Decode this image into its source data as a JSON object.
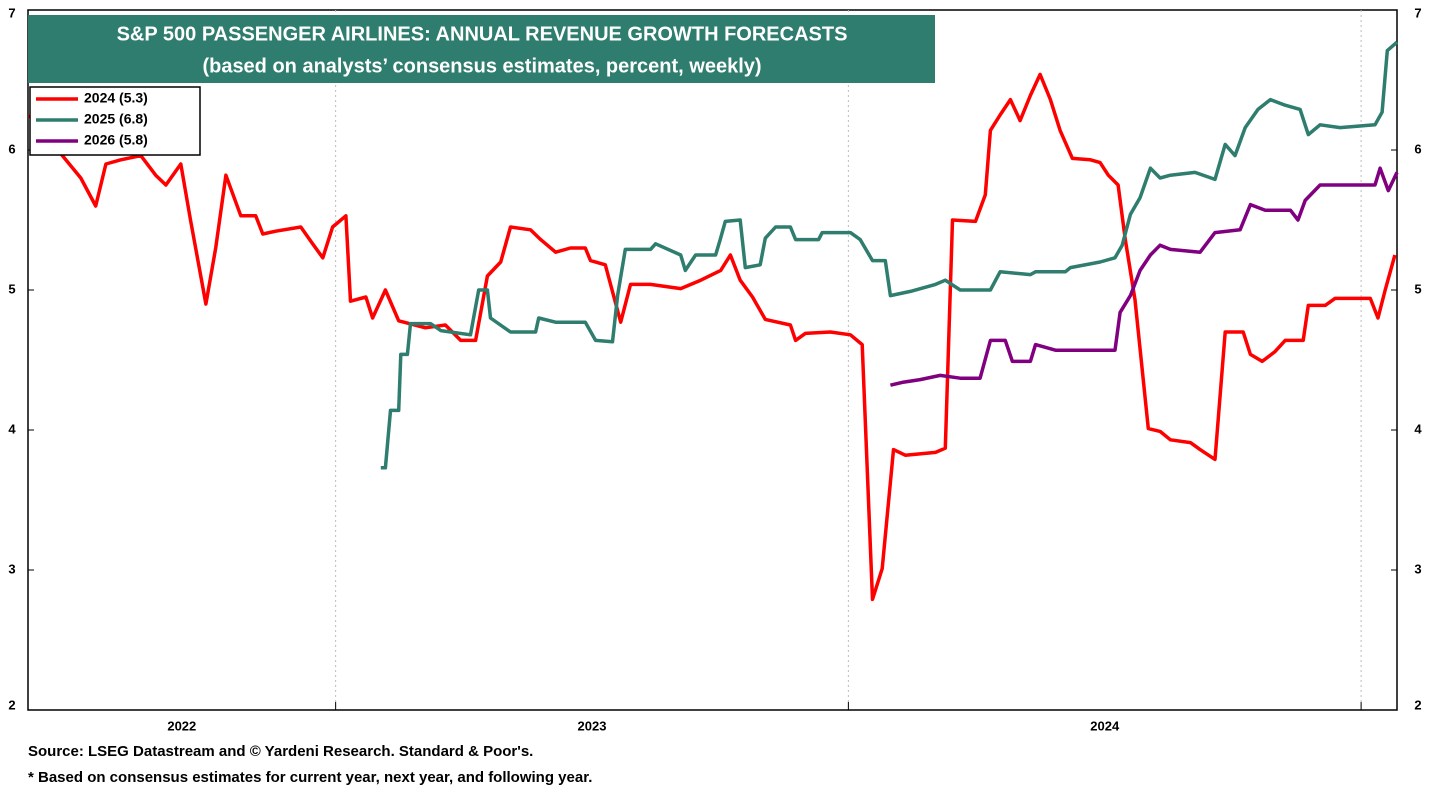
{
  "chart_data": {
    "type": "line",
    "title": "S&P 500 PASSENGER AIRLINES: ANNUAL REVENUE GROWTH FORECASTS",
    "subtitle": "(based on analysts’ consensus estimates, percent, weekly)",
    "source": "Source: LSEG Datastream and © Yardeni Research. Standard & Poor's.",
    "note": "* Based on consensus estimates for current year, next year, and following year.",
    "xlim": [
      2022.4,
      2025.07
    ],
    "xticks": [
      {
        "value": 2022.7,
        "label": "2022"
      },
      {
        "value": 2023.5,
        "label": "2023"
      },
      {
        "value": 2024.5,
        "label": "2024"
      }
    ],
    "xgrid": [
      2023,
      2024,
      2025
    ],
    "ylim": [
      2,
      7
    ],
    "yticks": [
      2,
      3,
      4,
      5,
      6,
      7
    ],
    "legend": "upper left",
    "series": [
      {
        "name": "2024 (5.3)",
        "color": "#ff0000",
        "x": [
          2022.402,
          2022.503,
          2022.532,
          2022.552,
          2022.581,
          2022.62,
          2022.649,
          2022.669,
          2022.698,
          2022.717,
          2022.747,
          2022.766,
          2022.786,
          2022.815,
          2022.844,
          2022.858,
          2022.883,
          2022.932,
          2022.955,
          2022.975,
          2022.994,
          2023.02,
          2023.029,
          2023.059,
          2023.072,
          2023.097,
          2023.123,
          2023.175,
          2023.214,
          2023.244,
          2023.273,
          2023.296,
          2023.322,
          2023.341,
          2023.38,
          2023.4,
          2023.429,
          2023.458,
          2023.487,
          2023.497,
          2023.526,
          2023.556,
          2023.575,
          2023.614,
          2023.673,
          2023.712,
          2023.751,
          2023.77,
          2023.789,
          2023.813,
          2023.838,
          2023.887,
          2023.897,
          2023.916,
          2023.965,
          2024.004,
          2024.027,
          2024.047,
          2024.066,
          2024.088,
          2024.111,
          2024.17,
          2024.189,
          2024.203,
          2024.248,
          2024.267,
          2024.277,
          2024.296,
          2024.316,
          2024.335,
          2024.355,
          2024.374,
          2024.394,
          2024.413,
          2024.437,
          2024.472,
          2024.491,
          2024.507,
          2024.526,
          2024.54,
          2024.559,
          2024.585,
          2024.608,
          2024.628,
          2024.667,
          2024.686,
          2024.715,
          2024.735,
          2024.77,
          2024.784,
          2024.807,
          2024.832,
          2024.852,
          2024.887,
          2024.897,
          2024.93,
          2024.949,
          2025.018,
          2025.033,
          2025.047,
          2025.066
        ],
        "values": [
          6.25,
          5.8,
          5.6,
          5.9,
          5.93,
          5.96,
          5.82,
          5.75,
          5.9,
          5.5,
          4.9,
          5.3,
          5.82,
          5.53,
          5.53,
          5.4,
          5.42,
          5.45,
          5.33,
          5.23,
          5.45,
          5.53,
          4.92,
          4.95,
          4.8,
          5.0,
          4.78,
          4.73,
          4.75,
          4.64,
          4.64,
          5.1,
          5.2,
          5.45,
          5.43,
          5.36,
          5.27,
          5.3,
          5.3,
          5.21,
          5.18,
          4.77,
          5.04,
          5.04,
          5.01,
          5.07,
          5.14,
          5.25,
          5.07,
          4.95,
          4.79,
          4.75,
          4.64,
          4.69,
          4.7,
          4.68,
          4.61,
          2.79,
          3.01,
          3.86,
          3.82,
          3.84,
          3.87,
          5.5,
          5.49,
          5.68,
          6.14,
          6.25,
          6.36,
          6.21,
          6.39,
          6.54,
          6.36,
          6.14,
          5.94,
          5.93,
          5.91,
          5.82,
          5.75,
          5.36,
          4.93,
          4.01,
          3.99,
          3.93,
          3.91,
          3.86,
          3.79,
          4.7,
          4.7,
          4.54,
          4.49,
          4.56,
          4.64,
          4.64,
          4.89,
          4.89,
          4.94,
          4.94,
          4.8,
          5.0,
          5.25
        ]
      },
      {
        "name": "2025 (6.8)",
        "color": "#2e7d6e",
        "x": [
          2023.088,
          2023.097,
          2023.107,
          2023.123,
          2023.127,
          2023.14,
          2023.146,
          2023.185,
          2023.205,
          2023.263,
          2023.279,
          2023.296,
          2023.302,
          2023.341,
          2023.39,
          2023.396,
          2023.429,
          2023.487,
          2023.507,
          2023.54,
          2023.55,
          2023.565,
          2023.614,
          2023.624,
          2023.673,
          2023.682,
          2023.702,
          2023.741,
          2023.75,
          2023.76,
          2023.789,
          2023.799,
          2023.828,
          2023.838,
          2023.858,
          2023.887,
          2023.897,
          2023.942,
          2023.949,
          2024.004,
          2024.023,
          2024.047,
          2024.072,
          2024.082,
          2024.121,
          2024.17,
          2024.189,
          2024.218,
          2024.277,
          2024.296,
          2024.355,
          2024.365,
          2024.423,
          2024.433,
          2024.491,
          2024.52,
          2024.534,
          2024.55,
          2024.569,
          2024.589,
          2024.608,
          2024.628,
          2024.676,
          2024.715,
          2024.735,
          2024.754,
          2024.774,
          2024.799,
          2024.823,
          2024.852,
          2024.881,
          2024.897,
          2024.92,
          2024.959,
          2025.027,
          2025.041,
          2025.051,
          2025.07
        ],
        "values": [
          3.73,
          3.73,
          4.14,
          4.14,
          4.54,
          4.54,
          4.76,
          4.76,
          4.71,
          4.68,
          5.0,
          5.0,
          4.8,
          4.7,
          4.7,
          4.8,
          4.77,
          4.77,
          4.64,
          4.63,
          4.96,
          5.29,
          5.29,
          5.33,
          5.25,
          5.14,
          5.25,
          5.25,
          5.36,
          5.49,
          5.5,
          5.16,
          5.18,
          5.37,
          5.45,
          5.45,
          5.36,
          5.36,
          5.41,
          5.41,
          5.36,
          5.21,
          5.21,
          4.96,
          4.99,
          5.04,
          5.07,
          5.0,
          5.0,
          5.13,
          5.11,
          5.13,
          5.13,
          5.16,
          5.2,
          5.23,
          5.32,
          5.54,
          5.66,
          5.87,
          5.8,
          5.82,
          5.84,
          5.79,
          6.04,
          5.96,
          6.16,
          6.29,
          6.36,
          6.32,
          6.29,
          6.11,
          6.18,
          6.16,
          6.18,
          6.27,
          6.71,
          6.77
        ]
      },
      {
        "name": "2026 (5.8)",
        "color": "#800080",
        "x": [
          2024.082,
          2024.105,
          2024.14,
          2024.179,
          2024.218,
          2024.257,
          2024.277,
          2024.306,
          2024.32,
          2024.355,
          2024.365,
          2024.404,
          2024.413,
          2024.462,
          2024.52,
          2024.53,
          2024.55,
          2024.569,
          2024.589,
          2024.608,
          2024.628,
          2024.686,
          2024.715,
          2024.764,
          2024.784,
          2024.813,
          2024.862,
          2024.877,
          2024.891,
          2024.92,
          2024.959,
          2025.027,
          2025.037,
          2025.053,
          2025.07
        ],
        "values": [
          4.32,
          4.34,
          4.36,
          4.39,
          4.37,
          4.37,
          4.64,
          4.64,
          4.49,
          4.49,
          4.61,
          4.57,
          4.57,
          4.57,
          4.57,
          4.84,
          4.96,
          5.14,
          5.25,
          5.32,
          5.29,
          5.27,
          5.41,
          5.43,
          5.61,
          5.57,
          5.57,
          5.5,
          5.64,
          5.75,
          5.75,
          5.75,
          5.87,
          5.71,
          5.84
        ]
      }
    ]
  }
}
